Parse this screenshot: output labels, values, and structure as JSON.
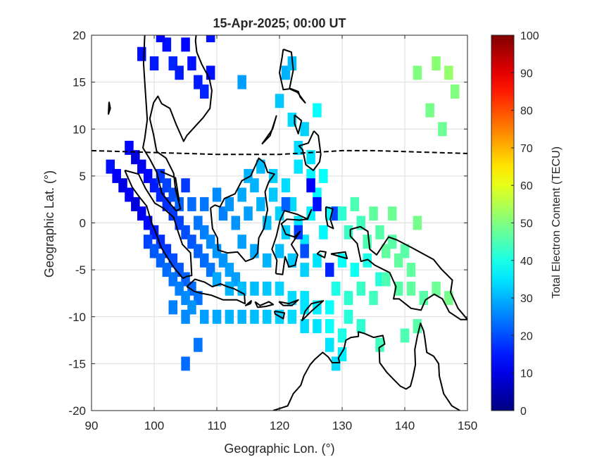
{
  "chart_data": {
    "type": "heatmap",
    "title": "15-Apr-2025; 00:00 UT",
    "xlabel": "Geographic Lon. (°)",
    "ylabel": "Geographic Lat. (°)",
    "xlim": [
      90,
      150
    ],
    "ylim": [
      -20,
      20
    ],
    "xticks": [
      90,
      100,
      110,
      120,
      130,
      140,
      150
    ],
    "yticks": [
      -20,
      -15,
      -10,
      -5,
      0,
      5,
      10,
      15,
      20
    ],
    "grid": true,
    "colorbar": {
      "label": "Total Electron Content (TECU)",
      "min": 0,
      "max": 100,
      "ticks": [
        0,
        10,
        20,
        30,
        40,
        50,
        60,
        70,
        80,
        90,
        100
      ],
      "colormap": "jet"
    },
    "overlays": [
      {
        "name": "magnetic equator",
        "style": "dashed",
        "color": "#000000",
        "points": [
          [
            90,
            7.7
          ],
          [
            95,
            7.6
          ],
          [
            100,
            7.5
          ],
          [
            105,
            7.4
          ],
          [
            110,
            7.3
          ],
          [
            115,
            7.3
          ],
          [
            120,
            7.3
          ],
          [
            125,
            7.5
          ],
          [
            130,
            7.7
          ],
          [
            135,
            7.7
          ],
          [
            140,
            7.6
          ],
          [
            145,
            7.5
          ],
          [
            150,
            7.4
          ]
        ]
      }
    ],
    "cell_size_deg": [
      1.4,
      1.5
    ],
    "cells": [
      [
        93,
        6,
        14
      ],
      [
        94,
        5,
        12
      ],
      [
        95,
        4,
        10
      ],
      [
        96,
        3,
        12
      ],
      [
        97,
        2,
        9
      ],
      [
        98,
        1,
        11
      ],
      [
        99,
        0,
        13
      ],
      [
        100,
        -1,
        15
      ],
      [
        101,
        -2,
        17
      ],
      [
        102,
        -3,
        18
      ],
      [
        103,
        -4,
        20
      ],
      [
        104,
        -5,
        21
      ],
      [
        105,
        -6,
        22
      ],
      [
        106,
        -7,
        23
      ],
      [
        107,
        -8,
        24
      ],
      [
        96,
        8,
        13
      ],
      [
        97,
        7,
        9
      ],
      [
        98,
        6,
        11
      ],
      [
        99,
        5,
        13
      ],
      [
        100,
        4,
        15
      ],
      [
        101,
        3,
        16
      ],
      [
        102,
        2,
        17
      ],
      [
        103,
        1,
        18
      ],
      [
        104,
        0,
        19
      ],
      [
        105,
        -1,
        20
      ],
      [
        106,
        -2,
        21
      ],
      [
        107,
        -3,
        22
      ],
      [
        108,
        -4,
        23
      ],
      [
        109,
        -5,
        24
      ],
      [
        101,
        5,
        18
      ],
      [
        102,
        4,
        19
      ],
      [
        103,
        3,
        20
      ],
      [
        104,
        2,
        22
      ],
      [
        105,
        4,
        18
      ],
      [
        106,
        2,
        23
      ],
      [
        107,
        0,
        24
      ],
      [
        108,
        -1,
        25
      ],
      [
        109,
        -2,
        26
      ],
      [
        110,
        -3,
        27
      ],
      [
        111,
        -4,
        27
      ],
      [
        112,
        -5,
        28
      ],
      [
        113,
        -6,
        28
      ],
      [
        99,
        -2,
        19
      ],
      [
        100,
        -3,
        21
      ],
      [
        101,
        -4,
        22
      ],
      [
        102,
        -5,
        23
      ],
      [
        103,
        -6,
        24
      ],
      [
        104,
        -7,
        25
      ],
      [
        105,
        -8,
        26
      ],
      [
        106,
        -9,
        27
      ],
      [
        108,
        -10,
        28
      ],
      [
        110,
        -10,
        29
      ],
      [
        112,
        -10,
        30
      ],
      [
        114,
        -10,
        30
      ],
      [
        116,
        -10,
        31
      ],
      [
        118,
        -10,
        32
      ],
      [
        120,
        -10,
        33
      ],
      [
        122,
        -10,
        34
      ],
      [
        124,
        -9,
        35
      ],
      [
        126,
        -9,
        36
      ],
      [
        128,
        -9,
        38
      ],
      [
        110,
        -6,
        29
      ],
      [
        112,
        -7,
        30
      ],
      [
        114,
        -7,
        31
      ],
      [
        116,
        -7,
        31
      ],
      [
        118,
        -7,
        32
      ],
      [
        120,
        -7,
        33
      ],
      [
        122,
        -8,
        34
      ],
      [
        124,
        -8,
        35
      ],
      [
        108,
        2,
        24
      ],
      [
        110,
        3,
        26
      ],
      [
        111,
        1,
        25
      ],
      [
        112,
        2,
        27
      ],
      [
        113,
        0,
        27
      ],
      [
        114,
        3,
        29
      ],
      [
        115,
        1,
        28
      ],
      [
        116,
        4,
        30
      ],
      [
        117,
        2,
        30
      ],
      [
        118,
        0,
        31
      ],
      [
        119,
        3,
        32
      ],
      [
        120,
        1,
        33
      ],
      [
        121,
        -1,
        33
      ],
      [
        122,
        2,
        34
      ],
      [
        123,
        0,
        35
      ],
      [
        124,
        -2,
        35
      ],
      [
        125,
        1,
        36
      ],
      [
        126,
        3,
        37
      ],
      [
        127,
        -1,
        37
      ],
      [
        128,
        1,
        38
      ],
      [
        114,
        -2,
        28
      ],
      [
        116,
        -3,
        29
      ],
      [
        118,
        -4,
        30
      ],
      [
        120,
        -3,
        31
      ],
      [
        122,
        -4,
        32
      ],
      [
        124,
        -5,
        33
      ],
      [
        126,
        -4,
        35
      ],
      [
        128,
        -5,
        36
      ],
      [
        130,
        -4,
        38
      ],
      [
        132,
        -5,
        39
      ],
      [
        134,
        -4,
        40
      ],
      [
        136,
        -6,
        41
      ],
      [
        115,
        5,
        30
      ],
      [
        117,
        6,
        31
      ],
      [
        119,
        5,
        33
      ],
      [
        121,
        4,
        34
      ],
      [
        123,
        6,
        35
      ],
      [
        125,
        5,
        37
      ],
      [
        127,
        5,
        38
      ],
      [
        124,
        -3,
        20
      ],
      [
        126,
        2,
        14
      ],
      [
        121,
        2,
        22
      ],
      [
        128,
        -5,
        16
      ],
      [
        123,
        -1,
        18
      ],
      [
        125,
        4,
        12
      ],
      [
        129,
        1,
        19
      ],
      [
        123,
        8,
        34
      ],
      [
        124,
        10,
        33
      ],
      [
        125,
        7,
        35
      ],
      [
        122,
        11,
        34
      ],
      [
        126,
        12,
        38
      ],
      [
        121,
        16,
        30
      ],
      [
        122,
        17,
        31
      ],
      [
        120,
        13,
        32
      ],
      [
        114,
        15,
        28
      ],
      [
        98,
        18,
        14
      ],
      [
        100,
        17,
        15
      ],
      [
        102,
        19,
        14
      ],
      [
        103,
        17,
        16
      ],
      [
        104,
        16,
        15
      ],
      [
        105,
        19,
        13
      ],
      [
        106,
        17,
        14
      ],
      [
        107,
        15,
        15
      ],
      [
        108,
        14,
        16
      ],
      [
        109,
        16,
        14
      ],
      [
        101,
        20,
        13
      ],
      [
        109,
        20,
        14
      ],
      [
        130,
        1,
        42
      ],
      [
        131,
        -1,
        43
      ],
      [
        132,
        2,
        45
      ],
      [
        133,
        0,
        44
      ],
      [
        134,
        -2,
        45
      ],
      [
        135,
        1,
        47
      ],
      [
        136,
        -1,
        46
      ],
      [
        137,
        -3,
        47
      ],
      [
        138,
        -2,
        46
      ],
      [
        139,
        -4,
        47
      ],
      [
        140,
        -3,
        46
      ],
      [
        141,
        -5,
        47
      ],
      [
        138,
        1,
        48
      ],
      [
        142,
        0,
        49
      ],
      [
        129,
        -7,
        40
      ],
      [
        131,
        -8,
        42
      ],
      [
        133,
        -7,
        43
      ],
      [
        135,
        -8,
        44
      ],
      [
        137,
        -6,
        45
      ],
      [
        139,
        -7,
        46
      ],
      [
        141,
        -7,
        47
      ],
      [
        143,
        -8,
        46
      ],
      [
        145,
        -7,
        48
      ],
      [
        147,
        -8,
        49
      ],
      [
        128,
        -11,
        38
      ],
      [
        130,
        -12,
        40
      ],
      [
        131,
        -10,
        41
      ],
      [
        133,
        -11,
        42
      ],
      [
        136,
        -13,
        44
      ],
      [
        140,
        -12,
        45
      ],
      [
        142,
        -11,
        46
      ],
      [
        128,
        -13,
        35
      ],
      [
        129,
        -15,
        34
      ],
      [
        130,
        -14,
        36
      ],
      [
        124,
        -11,
        34
      ],
      [
        126,
        -11,
        35
      ],
      [
        103,
        -9,
        25
      ],
      [
        105,
        -10,
        26
      ],
      [
        107,
        -13,
        24
      ],
      [
        105,
        -15,
        23
      ],
      [
        142,
        16,
        50
      ],
      [
        145,
        17,
        51
      ],
      [
        147,
        16,
        52
      ],
      [
        148,
        14,
        50
      ],
      [
        144,
        12,
        49
      ],
      [
        146,
        10,
        48
      ]
    ]
  }
}
